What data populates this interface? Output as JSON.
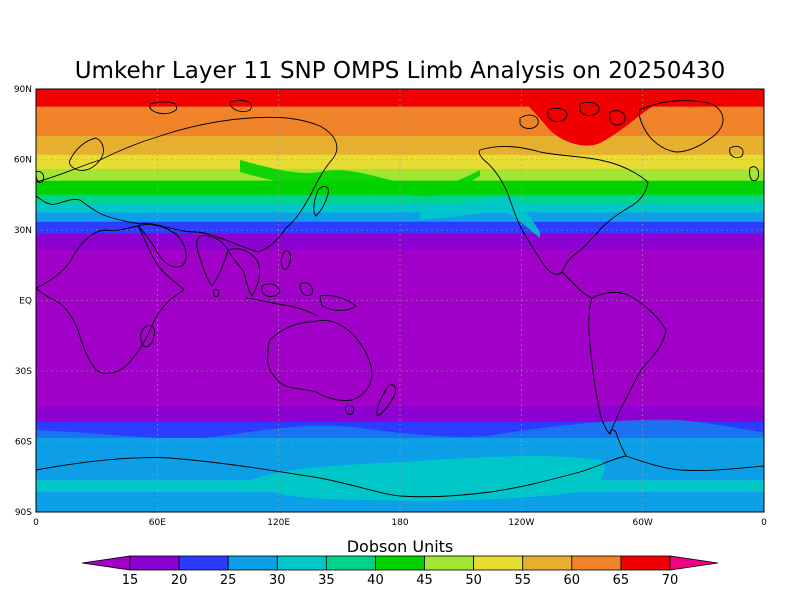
{
  "title": "Umkehr Layer 11 SNP OMPS Limb Analysis on 20250430",
  "map": {
    "projection": "equirectangular",
    "lon_range": [
      0,
      360
    ],
    "lat_range": [
      -90,
      90
    ],
    "grid": true,
    "lat_ticks": [
      {
        "lat": 90,
        "label": "90N"
      },
      {
        "lat": 60,
        "label": "60N"
      },
      {
        "lat": 30,
        "label": "30N"
      },
      {
        "lat": 0,
        "label": "EQ"
      },
      {
        "lat": -30,
        "label": "30S"
      },
      {
        "lat": -60,
        "label": "60S"
      },
      {
        "lat": -90,
        "label": "90S"
      }
    ],
    "lon_ticks": [
      {
        "lon": 0,
        "label": "0"
      },
      {
        "lon": 60,
        "label": "60E"
      },
      {
        "lon": 120,
        "label": "120E"
      },
      {
        "lon": 180,
        "label": "180"
      },
      {
        "lon": 240,
        "label": "120W"
      },
      {
        "lon": 300,
        "label": "60W"
      },
      {
        "lon": 360,
        "label": "0"
      }
    ]
  },
  "colorbar": {
    "label": "Dobson Units",
    "ticks": [
      "15",
      "20",
      "25",
      "30",
      "35",
      "40",
      "45",
      "50",
      "55",
      "60",
      "65",
      "70"
    ],
    "low_color": "#a000c8",
    "high_color": "#f00082",
    "colors": [
      "#8c00d2",
      "#2c3cff",
      "#0c9ee6",
      "#00c8c8",
      "#00d28c",
      "#00d200",
      "#a0e632",
      "#e6dc32",
      "#e6af2d",
      "#f08228",
      "#f00000"
    ]
  },
  "chart_data": {
    "type": "heatmap",
    "title": "Umkehr Layer 11 SNP OMPS Limb Analysis on 20250430",
    "xlabel": "",
    "ylabel": "",
    "x_range": [
      0,
      360
    ],
    "y_range": [
      -90,
      90
    ],
    "units": "Dobson Units",
    "levels": [
      15,
      20,
      25,
      30,
      35,
      40,
      45,
      50,
      55,
      60,
      65,
      70
    ],
    "zonal_profile": [
      {
        "lat": -90,
        "value": 27.5
      },
      {
        "lat": -80,
        "value": 30.5
      },
      {
        "lat": -70,
        "value": 29
      },
      {
        "lat": -60,
        "value": 26
      },
      {
        "lat": -55,
        "value": 22
      },
      {
        "lat": -50,
        "value": 19
      },
      {
        "lat": -45,
        "value": 15
      },
      {
        "lat": -30,
        "value": 14
      },
      {
        "lat": 0,
        "value": 14
      },
      {
        "lat": 20,
        "value": 14
      },
      {
        "lat": 25,
        "value": 17
      },
      {
        "lat": 30,
        "value": 21
      },
      {
        "lat": 35,
        "value": 27
      },
      {
        "lat": 40,
        "value": 33
      },
      {
        "lat": 45,
        "value": 40
      },
      {
        "lat": 52,
        "value": 46
      },
      {
        "lat": 58,
        "value": 52
      },
      {
        "lat": 65,
        "value": 57
      },
      {
        "lat": 72,
        "value": 61
      },
      {
        "lat": 80,
        "value": 64
      },
      {
        "lat": 85,
        "value": 66
      },
      {
        "lat": 88,
        "value": 68
      },
      {
        "lat": 90,
        "value": 70
      }
    ]
  }
}
